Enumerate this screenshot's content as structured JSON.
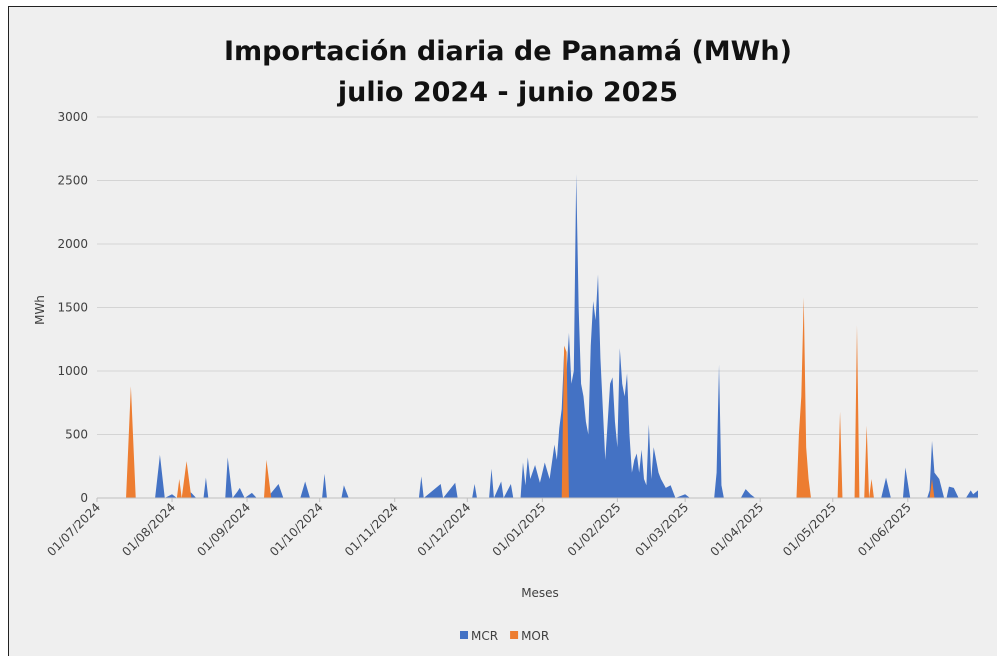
{
  "chart_data": {
    "type": "area",
    "title": "Importación diaria de Panamá (MWh)",
    "subtitle": "julio 2024 - junio 2025",
    "x_label": "Meses",
    "y_label": "MWh",
    "x": [
      "2024-07-01",
      "2024-07-13",
      "2024-07-15",
      "2024-07-17",
      "2024-07-25",
      "2024-07-27",
      "2024-07-29",
      "2024-08-01",
      "2024-08-03",
      "2024-08-04",
      "2024-08-05",
      "2024-08-07",
      "2024-08-09",
      "2024-08-11",
      "2024-08-14",
      "2024-08-15",
      "2024-08-16",
      "2024-08-23",
      "2024-08-24",
      "2024-08-26",
      "2024-08-28",
      "2024-08-29",
      "2024-08-31",
      "2024-09-03",
      "2024-09-05",
      "2024-09-08",
      "2024-09-09",
      "2024-09-11",
      "2024-09-14",
      "2024-09-16",
      "2024-09-23",
      "2024-09-25",
      "2024-09-27",
      "2024-10-02",
      "2024-10-03",
      "2024-10-04",
      "2024-10-10",
      "2024-10-11",
      "2024-10-13",
      "2024-11-11",
      "2024-11-12",
      "2024-11-13",
      "2024-11-20",
      "2024-11-21",
      "2024-11-26",
      "2024-11-27",
      "2024-12-03",
      "2024-12-04",
      "2024-12-05",
      "2024-12-10",
      "2024-12-11",
      "2024-12-12",
      "2024-12-15",
      "2024-12-16",
      "2024-12-19",
      "2024-12-20",
      "2024-12-23",
      "2024-12-24",
      "2024-12-25",
      "2024-12-26",
      "2024-12-27",
      "2024-12-29",
      "2024-12-31",
      "2025-01-02",
      "2025-01-04",
      "2025-01-06",
      "2025-01-07",
      "2025-01-08",
      "2025-01-09",
      "2025-01-10",
      "2025-01-11",
      "2025-01-12",
      "2025-01-13",
      "2025-01-14",
      "2025-01-15",
      "2025-01-16",
      "2025-01-17",
      "2025-01-18",
      "2025-01-19",
      "2025-01-20",
      "2025-01-21",
      "2025-01-22",
      "2025-01-23",
      "2025-01-24",
      "2025-01-25",
      "2025-01-26",
      "2025-01-27",
      "2025-01-28",
      "2025-01-29",
      "2025-01-30",
      "2025-01-31",
      "2025-02-01",
      "2025-02-02",
      "2025-02-03",
      "2025-02-04",
      "2025-02-05",
      "2025-02-06",
      "2025-02-07",
      "2025-02-08",
      "2025-02-09",
      "2025-02-10",
      "2025-02-11",
      "2025-02-12",
      "2025-02-13",
      "2025-02-14",
      "2025-02-15",
      "2025-02-16",
      "2025-02-17",
      "2025-02-18",
      "2025-02-19",
      "2025-02-21",
      "2025-02-23",
      "2025-02-25",
      "2025-03-01",
      "2025-03-03",
      "2025-03-13",
      "2025-03-14",
      "2025-03-15",
      "2025-03-16",
      "2025-03-17",
      "2025-03-24",
      "2025-03-26",
      "2025-03-28",
      "2025-03-30",
      "2025-04-16",
      "2025-04-17",
      "2025-04-18",
      "2025-04-19",
      "2025-04-20",
      "2025-04-21",
      "2025-04-22",
      "2025-05-03",
      "2025-05-04",
      "2025-05-05",
      "2025-05-10",
      "2025-05-11",
      "2025-05-12",
      "2025-05-14",
      "2025-05-15",
      "2025-05-16",
      "2025-05-17",
      "2025-05-18",
      "2025-05-21",
      "2025-05-23",
      "2025-05-25",
      "2025-05-30",
      "2025-05-31",
      "2025-06-02",
      "2025-06-09",
      "2025-06-10",
      "2025-06-11",
      "2025-06-12",
      "2025-06-14",
      "2025-06-16",
      "2025-06-17",
      "2025-06-18",
      "2025-06-20",
      "2025-06-22",
      "2025-06-25",
      "2025-06-27",
      "2025-06-28",
      "2025-06-30"
    ],
    "series": [
      {
        "name": "MCR",
        "color": "#4472c4",
        "values": [
          0,
          0,
          0,
          0,
          0,
          340,
          0,
          30,
          0,
          0,
          0,
          60,
          40,
          0,
          0,
          160,
          0,
          0,
          320,
          0,
          50,
          80,
          0,
          40,
          0,
          0,
          0,
          40,
          110,
          0,
          0,
          130,
          0,
          0,
          190,
          0,
          0,
          100,
          0,
          0,
          170,
          0,
          110,
          0,
          120,
          0,
          0,
          110,
          0,
          0,
          230,
          0,
          130,
          0,
          110,
          0,
          0,
          280,
          100,
          320,
          150,
          260,
          120,
          280,
          150,
          420,
          300,
          550,
          700,
          1150,
          1000,
          1300,
          900,
          1000,
          2550,
          1500,
          900,
          800,
          600,
          500,
          1200,
          1550,
          1400,
          1760,
          1100,
          700,
          300,
          600,
          900,
          950,
          600,
          400,
          1180,
          900,
          800,
          980,
          500,
          200,
          300,
          350,
          200,
          380,
          150,
          100,
          580,
          150,
          400,
          300,
          200,
          150,
          80,
          100,
          0,
          30,
          0,
          0,
          200,
          1050,
          100,
          0,
          0,
          70,
          30,
          0,
          0,
          0,
          0,
          0,
          0,
          0,
          0,
          0,
          0,
          0,
          0,
          0,
          0,
          0,
          0,
          0,
          0,
          0,
          0,
          160,
          0,
          0,
          240,
          0,
          0,
          60,
          450,
          200,
          150,
          0,
          0,
          90,
          80,
          0,
          0,
          60,
          30,
          60
        ]
      },
      {
        "name": "MOR",
        "color": "#ed7d31",
        "values": [
          0,
          0,
          880,
          0,
          0,
          0,
          0,
          0,
          0,
          150,
          0,
          290,
          0,
          0,
          0,
          0,
          0,
          0,
          0,
          0,
          0,
          0,
          0,
          0,
          0,
          0,
          300,
          0,
          0,
          0,
          0,
          0,
          0,
          0,
          0,
          0,
          0,
          0,
          0,
          0,
          0,
          0,
          0,
          0,
          0,
          0,
          0,
          0,
          0,
          0,
          0,
          0,
          0,
          0,
          0,
          0,
          0,
          0,
          0,
          0,
          0,
          0,
          0,
          0,
          0,
          0,
          0,
          0,
          0,
          1200,
          1150,
          0,
          0,
          0,
          0,
          0,
          0,
          0,
          0,
          0,
          0,
          0,
          0,
          0,
          0,
          0,
          0,
          0,
          0,
          0,
          0,
          0,
          0,
          0,
          0,
          0,
          0,
          0,
          0,
          0,
          0,
          0,
          0,
          0,
          0,
          0,
          0,
          0,
          0,
          0,
          0,
          0,
          0,
          0,
          0,
          0,
          0,
          0,
          0,
          0,
          0,
          0,
          0,
          0,
          0,
          500,
          800,
          1580,
          400,
          150,
          0,
          0,
          680,
          0,
          0,
          1360,
          0,
          0,
          570,
          0,
          150,
          0,
          0,
          0,
          0,
          0,
          0,
          0,
          0,
          0,
          150,
          0,
          0,
          0,
          0,
          0,
          0,
          0,
          0,
          0,
          0,
          0
        ]
      }
    ],
    "xlim": [
      "2024-07-01",
      "2025-06-30"
    ],
    "xticks": [
      {
        "value": "2024-07-01",
        "label": "01/07/2024"
      },
      {
        "value": "2024-08-01",
        "label": "01/08/2024"
      },
      {
        "value": "2024-09-01",
        "label": "01/09/2024"
      },
      {
        "value": "2024-10-01",
        "label": "01/10/2024"
      },
      {
        "value": "2024-11-01",
        "label": "01/11/2024"
      },
      {
        "value": "2024-12-01",
        "label": "01/12/2024"
      },
      {
        "value": "2025-01-01",
        "label": "01/01/2025"
      },
      {
        "value": "2025-02-01",
        "label": "01/02/2025"
      },
      {
        "value": "2025-03-01",
        "label": "01/03/2025"
      },
      {
        "value": "2025-04-01",
        "label": "01/04/2025"
      },
      {
        "value": "2025-05-01",
        "label": "01/05/2025"
      },
      {
        "value": "2025-06-01",
        "label": "01/06/2025"
      }
    ],
    "ylim": [
      0,
      3000
    ],
    "yticks": [
      0,
      500,
      1000,
      1500,
      2000,
      2500,
      3000
    ],
    "grid": true,
    "legend": "bottom"
  }
}
